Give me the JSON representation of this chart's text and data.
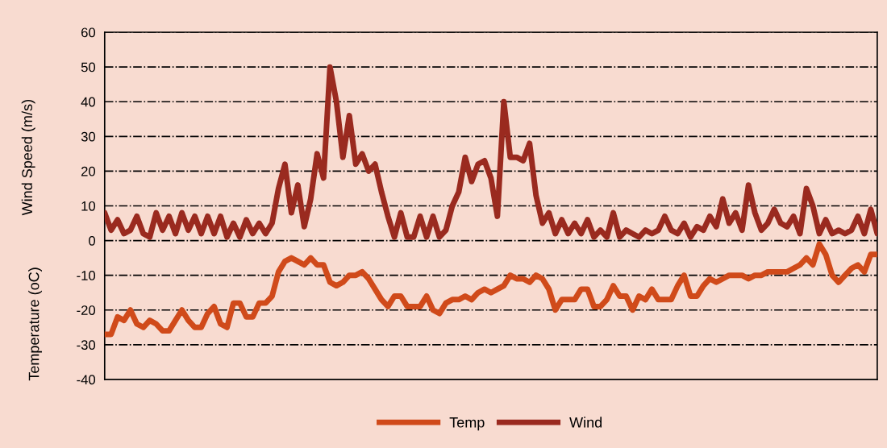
{
  "chart_data": {
    "type": "line",
    "ylabel": "Wind Speed (m/s)",
    "annotations": [
      "Temperature (oC)"
    ],
    "categories": [
      null,
      null,
      null,
      null,
      null,
      null,
      null,
      null,
      null,
      null,
      null,
      null,
      null,
      null,
      null,
      null,
      null,
      null,
      null,
      null,
      null,
      null,
      null,
      null,
      null,
      null,
      null,
      null,
      null,
      null,
      null,
      null,
      null,
      null,
      null,
      null,
      null,
      null,
      null,
      null,
      null,
      null,
      null,
      null,
      null,
      null,
      null,
      null,
      null,
      null,
      null,
      null,
      null,
      null,
      null,
      null,
      null,
      null,
      null,
      null,
      null,
      null,
      null,
      null,
      null,
      null,
      null,
      null,
      null,
      null,
      null,
      null,
      null,
      null,
      null,
      null,
      null,
      null,
      null,
      null,
      null,
      null,
      null,
      null,
      null,
      null,
      null,
      null,
      null,
      null,
      null,
      null,
      null,
      null,
      null,
      null,
      null,
      null,
      null,
      null,
      null,
      null,
      null,
      null,
      null,
      null,
      null,
      null,
      null,
      null,
      null,
      null,
      null,
      null,
      null,
      null,
      null,
      null,
      null,
      null,
      null
    ],
    "series": [
      {
        "name": "Temp",
        "color": "#d04a1a",
        "values": [
          -27,
          -27,
          -22,
          -23,
          -20,
          -24,
          -25,
          -23,
          -24,
          -26,
          -26,
          -23,
          -20,
          -23,
          -25,
          -25,
          -21,
          -19,
          -24,
          -25,
          -18,
          -18,
          -22,
          -22,
          -18,
          -18,
          -16,
          -9,
          -6,
          -5,
          -6,
          -7,
          -5,
          -7,
          -7,
          -12,
          -13,
          -12,
          -10,
          -10,
          -9,
          -11,
          -14,
          -17,
          -19,
          -16,
          -16,
          -19,
          -19,
          -19,
          -16,
          -20,
          -21,
          -18,
          -17,
          -17,
          -16,
          -17,
          -15,
          -14,
          -15,
          -14,
          -13,
          -10,
          -11,
          -11,
          -12,
          -10,
          -11,
          -14,
          -20,
          -17,
          -17,
          -17,
          -14,
          -14,
          -19,
          -19,
          -17,
          -13,
          -16,
          -16,
          -20,
          -16,
          -17,
          -14,
          -17,
          -17,
          -17,
          -13,
          -10,
          -16,
          -16,
          -13,
          -11,
          -12,
          -11,
          -10,
          -10,
          -10,
          -11,
          -10,
          -10,
          -9,
          -9,
          -9,
          -9,
          -8,
          -7,
          -5,
          -7,
          -1,
          -4,
          -10,
          -12,
          -10,
          -8,
          -7,
          -9,
          -4,
          -4
        ]
      },
      {
        "name": "Wind",
        "color": "#9a2a1f",
        "values": [
          8,
          3,
          6,
          2,
          3,
          7,
          2,
          1,
          8,
          3,
          7,
          2,
          8,
          3,
          7,
          2,
          7,
          2,
          7,
          1,
          5,
          1,
          6,
          2,
          5,
          2,
          5,
          15,
          22,
          8,
          16,
          4,
          12,
          25,
          18,
          50,
          40,
          24,
          36,
          22,
          25,
          20,
          22,
          14,
          7,
          1,
          8,
          1,
          1,
          7,
          1,
          7,
          1,
          3,
          10,
          14,
          24,
          17,
          22,
          23,
          18,
          7,
          40,
          24,
          24,
          23,
          28,
          13,
          5,
          8,
          2,
          6,
          2,
          5,
          2,
          6,
          1,
          3,
          1,
          8,
          1,
          3,
          2,
          1,
          3,
          2,
          3,
          7,
          3,
          2,
          5,
          1,
          4,
          3,
          7,
          4,
          12,
          5,
          8,
          3,
          16,
          8,
          3,
          5,
          9,
          5,
          4,
          7,
          2,
          15,
          10,
          2,
          6,
          2,
          3,
          2,
          3,
          7,
          2,
          9,
          2
        ]
      }
    ],
    "ylim": [
      -40,
      60
    ],
    "yticks": [
      -40,
      -30,
      -20,
      -10,
      0,
      10,
      20,
      30,
      40,
      50,
      60
    ],
    "grid": "y",
    "line_style": "solid",
    "legend": "bottom",
    "tick_labels": "y"
  }
}
